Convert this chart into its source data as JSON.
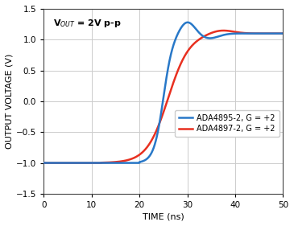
{
  "xlabel": "TIME (ns)",
  "ylabel": "OUTPUT VOLTAGE (V)",
  "xlim": [
    0,
    50
  ],
  "ylim": [
    -1.5,
    1.5
  ],
  "xticks": [
    0,
    10,
    20,
    30,
    40,
    50
  ],
  "yticks": [
    -1.5,
    -1.0,
    -0.5,
    0.0,
    0.5,
    1.0,
    1.5
  ],
  "blue_color": "#2878c8",
  "red_color": "#e83020",
  "legend_labels": [
    "ADA4895-2, G = +2",
    "ADA4897-2, G = +2"
  ],
  "bg_color": "#ffffff",
  "grid_color": "#cccccc",
  "annotation": "V$_{OUT}$ = 2V p-p"
}
